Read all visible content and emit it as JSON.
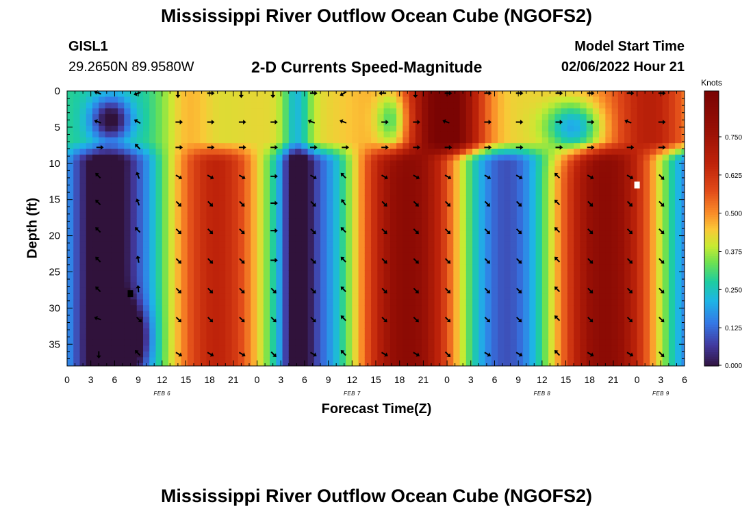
{
  "header": {
    "title_top": "Mississippi River Outflow Ocean Cube (NGOFS2)",
    "station_id": "GISL1",
    "station_coords": "29.2650N  89.9580W",
    "subtitle": "2-D Currents Speed-Magnitude",
    "model_start_label": "Model Start Time",
    "model_start_value": "02/06/2022 Hour 21",
    "title_bottom": "Mississippi River Outflow Ocean Cube (NGOFS2)"
  },
  "chart_data": {
    "type": "heatmap",
    "title": "2-D Currents Speed-Magnitude",
    "xlabel": "Forecast Time(Z)",
    "ylabel": "Depth (ft)",
    "colorbar_label": "Knots",
    "colorbar_ticks": [
      "0.000",
      "0.125",
      "0.250",
      "0.375",
      "0.500",
      "0.625",
      "0.750"
    ],
    "colorbar_range": [
      0,
      0.9
    ],
    "x_range_hours": [
      0,
      78
    ],
    "x_tick_labels": [
      "0",
      "3",
      "6",
      "9",
      "12",
      "15",
      "18",
      "21",
      "0",
      "3",
      "6",
      "9",
      "12",
      "15",
      "18",
      "21",
      "0",
      "3",
      "6",
      "9",
      "12",
      "15",
      "18",
      "21",
      "0",
      "3",
      "6"
    ],
    "date_labels": [
      {
        "label": "FEB 6",
        "hour": 12
      },
      {
        "label": "FEB 7",
        "hour": 36
      },
      {
        "label": "FEB 8",
        "hour": 60
      },
      {
        "label": "FEB 9",
        "hour": 75
      }
    ],
    "y_range": [
      0,
      38
    ],
    "y_ticks": [
      0,
      5,
      10,
      15,
      20,
      25,
      30,
      35
    ],
    "arrow_times": [
      4,
      9,
      14,
      18,
      22,
      26,
      31,
      35,
      40,
      44,
      48,
      53,
      57,
      62,
      66,
      71,
      75,
      79
    ],
    "arrow_depths": [
      0.3,
      4.3,
      7.8,
      11.8,
      15.5,
      19.3,
      23.4,
      27.5,
      31.5,
      36.3
    ],
    "arrow_angles_deg": [
      [
        200,
        160,
        90,
        0,
        90,
        90,
        0,
        150,
        180,
        90,
        0,
        0,
        0,
        0,
        0,
        0,
        0,
        200
      ],
      [
        200,
        210,
        0,
        0,
        0,
        0,
        200,
        200,
        0,
        0,
        200,
        0,
        0,
        0,
        0,
        200,
        0,
        200
      ],
      [
        0,
        225,
        0,
        0,
        0,
        0,
        0,
        0,
        0,
        0,
        0,
        0,
        0,
        0,
        0,
        0,
        0,
        0
      ],
      [
        225,
        250,
        30,
        30,
        30,
        0,
        30,
        225,
        30,
        30,
        30,
        30,
        30,
        225,
        30,
        30,
        45,
        45
      ],
      [
        225,
        250,
        45,
        45,
        45,
        0,
        45,
        235,
        45,
        45,
        45,
        45,
        45,
        225,
        45,
        45,
        45,
        45
      ],
      [
        225,
        225,
        45,
        45,
        45,
        0,
        45,
        225,
        45,
        45,
        45,
        45,
        45,
        225,
        45,
        45,
        45,
        45
      ],
      [
        225,
        260,
        45,
        45,
        45,
        0,
        45,
        225,
        45,
        45,
        45,
        45,
        45,
        225,
        45,
        45,
        45,
        45
      ],
      [
        225,
        265,
        45,
        45,
        45,
        45,
        45,
        225,
        45,
        45,
        45,
        45,
        45,
        225,
        45,
        45,
        45,
        45
      ],
      [
        200,
        45,
        45,
        45,
        45,
        45,
        45,
        225,
        45,
        45,
        45,
        45,
        45,
        225,
        45,
        45,
        45,
        45
      ],
      [
        90,
        225,
        30,
        30,
        30,
        45,
        30,
        225,
        30,
        30,
        45,
        30,
        30,
        225,
        30,
        30,
        45,
        45
      ]
    ],
    "markers": [
      {
        "color": "#000000",
        "hour": 8,
        "depth": 28
      },
      {
        "color": "#ffffff",
        "hour": 72,
        "depth": 13
      }
    ]
  }
}
